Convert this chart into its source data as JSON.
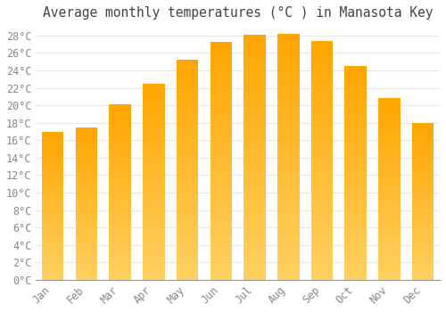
{
  "title": "Average monthly temperatures (°C ) in Manasota Key",
  "months": [
    "Jan",
    "Feb",
    "Mar",
    "Apr",
    "May",
    "Jun",
    "Jul",
    "Aug",
    "Sep",
    "Oct",
    "Nov",
    "Dec"
  ],
  "values": [
    17.0,
    17.5,
    20.1,
    22.5,
    25.2,
    27.3,
    28.1,
    28.2,
    27.4,
    24.5,
    20.8,
    18.0
  ],
  "bar_color_top": "#FFA500",
  "bar_color_bottom": "#FFD060",
  "background_color": "#FFFFFF",
  "grid_color": "#E8E8E8",
  "ytick_step": 2,
  "ymin": 0,
  "ymax": 29,
  "ytick_max": 28,
  "title_fontsize": 10.5,
  "tick_fontsize": 8.5,
  "title_color": "#444444",
  "tick_color": "#888888",
  "font_family": "monospace"
}
